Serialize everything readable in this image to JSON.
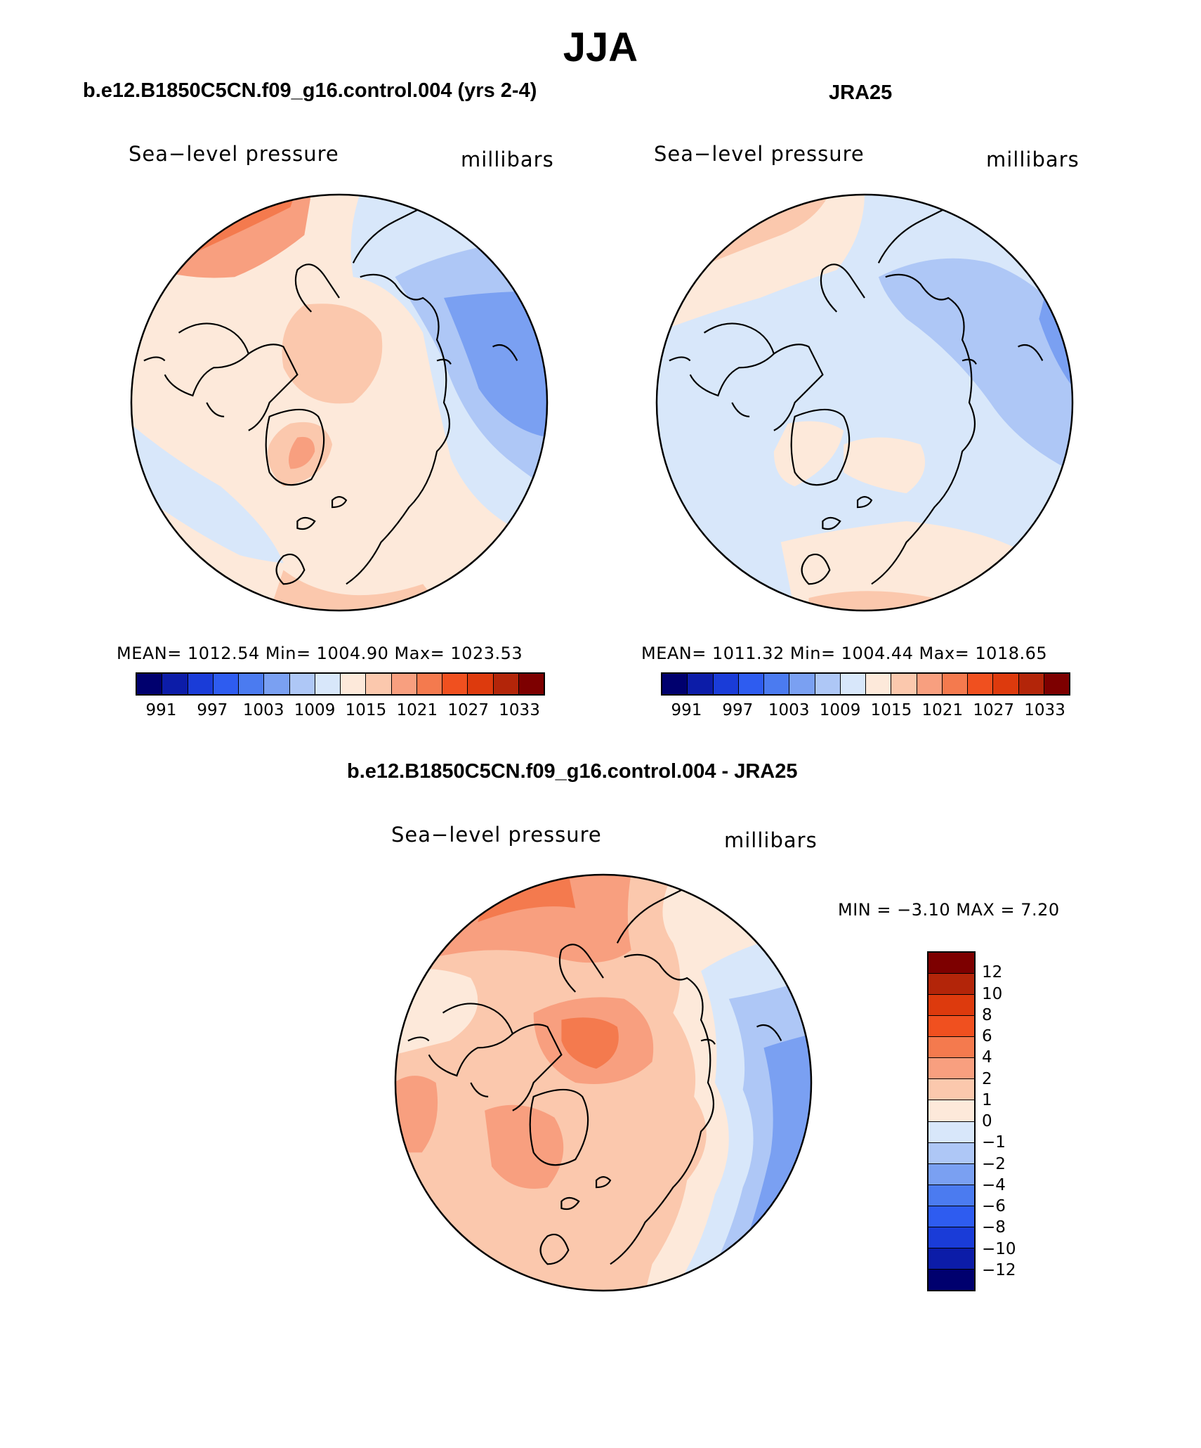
{
  "page_title": "JJA",
  "colors": {
    "scale": [
      "#00006e",
      "#0c1ca8",
      "#1a3cd8",
      "#2e5cf0",
      "#4b7bf0",
      "#7aa0f2",
      "#aec7f6",
      "#d8e7fa",
      "#fde9da",
      "#fbc8ad",
      "#f89f7f",
      "#f47a4e",
      "#f0501f",
      "#dd3a0d",
      "#b32509",
      "#7d0000"
    ],
    "coast": "#000000"
  },
  "panels": {
    "model": {
      "title": "b.e12.B1850C5CN.f09_g16.control.004 (yrs 2-4)",
      "left_label": "Sea−level pressure",
      "right_label": "millibars",
      "stats": "MEAN=  1012.54   Min=  1004.90   Max=  1023.53",
      "ticks": [
        "991",
        "997",
        "1003",
        "1009",
        "1015",
        "1021",
        "1027",
        "1033"
      ]
    },
    "obs": {
      "title": "JRA25",
      "left_label": "Sea−level pressure",
      "right_label": "millibars",
      "stats": "MEAN=  1011.32   Min=  1004.44   Max=  1018.65",
      "ticks": [
        "991",
        "997",
        "1003",
        "1009",
        "1015",
        "1021",
        "1027",
        "1033"
      ]
    },
    "diff": {
      "title": "b.e12.B1850C5CN.f09_g16.control.004 - JRA25",
      "left_label": "Sea−level pressure",
      "right_label": "millibars",
      "stats": "MIN =   −3.10  MAX =     7.20",
      "ticks": [
        "12",
        "10",
        "8",
        "6",
        "4",
        "2",
        "1",
        "0",
        "−1",
        "−2",
        "−4",
        "−6",
        "−8",
        "−10",
        "−12"
      ]
    }
  }
}
